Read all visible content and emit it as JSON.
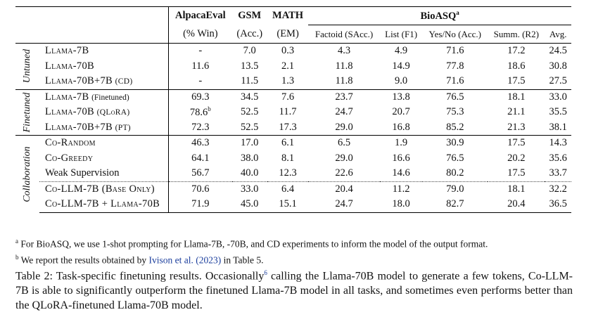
{
  "table": {
    "header": {
      "alpaca": "AlpacaEval",
      "gsm": "GSM",
      "math": "MATH",
      "bioasq": "BioASQ",
      "bioasq_mark": "a",
      "alpaca_metric": "(% Win)",
      "gsm_metric": "(Acc.)",
      "math_metric": "(EM)",
      "factoid_metric": "Factoid (SAcc.)",
      "list_metric": "List (F1)",
      "yesno_metric": "Yes/No (Acc.)",
      "summ_metric": "Summ. (R2)",
      "avg_metric": "Avg."
    },
    "sections": {
      "untuned": "Untuned",
      "finetuned": "Finetuned",
      "collaboration": "Collaboration"
    },
    "rows": [
      {
        "model": "Llama-7B",
        "suffix": "",
        "alpaca": "-",
        "alpaca_mark": "",
        "gsm": "7.0",
        "math": "0.3",
        "factoid": "4.3",
        "list": "4.9",
        "yesno": "71.6",
        "summ": "17.2",
        "avg": "24.5"
      },
      {
        "model": "Llama-70B",
        "suffix": "",
        "alpaca": "11.6",
        "alpaca_mark": "",
        "gsm": "13.5",
        "math": "2.1",
        "factoid": "11.8",
        "list": "14.9",
        "yesno": "77.8",
        "summ": "18.6",
        "avg": "30.8"
      },
      {
        "model": "Llama-70B+7B",
        "suffix": "(CD)",
        "alpaca": "-",
        "alpaca_mark": "",
        "gsm": "11.5",
        "math": "1.3",
        "factoid": "11.8",
        "list": "9.0",
        "yesno": "71.6",
        "summ": "17.5",
        "avg": "27.5"
      },
      {
        "model": "Llama-7B",
        "suffix": "(Finetuned)",
        "alpaca": "69.3",
        "alpaca_mark": "",
        "gsm": "34.5",
        "math": "7.6",
        "factoid": "23.7",
        "list": "13.8",
        "yesno": "76.5",
        "summ": "18.1",
        "avg": "33.0"
      },
      {
        "model": "Llama-70B",
        "suffix": "(QLoRA)",
        "alpaca": "78.6",
        "alpaca_mark": "b",
        "gsm": "52.5",
        "math": "11.7",
        "factoid": "24.7",
        "list": "20.7",
        "yesno": "75.3",
        "summ": "21.1",
        "avg": "35.5"
      },
      {
        "model": "Llama-70B+7B",
        "suffix": "(PT)",
        "alpaca": "72.3",
        "alpaca_mark": "",
        "gsm": "52.5",
        "math": "17.3",
        "factoid": "29.0",
        "list": "16.8",
        "yesno": "85.2",
        "summ": "21.3",
        "avg": "38.1"
      },
      {
        "model": "Co-Random",
        "suffix": "",
        "alpaca": "46.3",
        "alpaca_mark": "",
        "gsm": "17.0",
        "math": "6.1",
        "factoid": "6.5",
        "list": "1.9",
        "yesno": "30.9",
        "summ": "17.5",
        "avg": "14.3"
      },
      {
        "model": "Co-Greedy",
        "suffix": "",
        "alpaca": "64.1",
        "alpaca_mark": "",
        "gsm": "38.0",
        "math": "8.1",
        "factoid": "29.0",
        "list": "16.6",
        "yesno": "76.5",
        "summ": "20.2",
        "avg": "35.6"
      },
      {
        "model": "Weak Supervision",
        "suffix": "",
        "alpaca": "56.7",
        "alpaca_mark": "",
        "gsm": "40.0",
        "math": "12.3",
        "factoid": "22.6",
        "list": "14.6",
        "yesno": "80.2",
        "summ": "17.5",
        "avg": "33.7"
      },
      {
        "model": "Co-LLM-7B (Base Only)",
        "suffix": "",
        "alpaca": "70.6",
        "alpaca_mark": "",
        "gsm": "33.0",
        "math": "6.4",
        "factoid": "20.4",
        "list": "11.2",
        "yesno": "79.0",
        "summ": "18.1",
        "avg": "32.2"
      },
      {
        "model": "Co-LLM-7B + Llama-70B",
        "suffix": "",
        "alpaca": "71.9",
        "alpaca_mark": "",
        "gsm": "45.0",
        "math": "15.1",
        "factoid": "24.7",
        "list": "18.0",
        "yesno": "82.7",
        "summ": "20.4",
        "avg": "36.5"
      }
    ]
  },
  "footnotes": {
    "a_mark": "a",
    "a_text": "For BioASQ, we use 1-shot prompting for Llama-7B, -70B, and CD experiments to inform the model of the output format.",
    "b_mark": "b",
    "b_pre": "We report the results obtained by",
    "b_link": "Ivison et al. (2023)",
    "b_post": "in Table 5."
  },
  "caption": {
    "pre": "Table 2: Task-specific finetuning results. Occasionally",
    "sup": "6",
    "post": " calling the Llama-70B model to generate a few tokens, Co-LLM-7B is able to significantly outperform the finetuned Llama-7B model in all tasks, and sometimes even performs better than the QLoRA-finetuned Llama-70B model."
  }
}
